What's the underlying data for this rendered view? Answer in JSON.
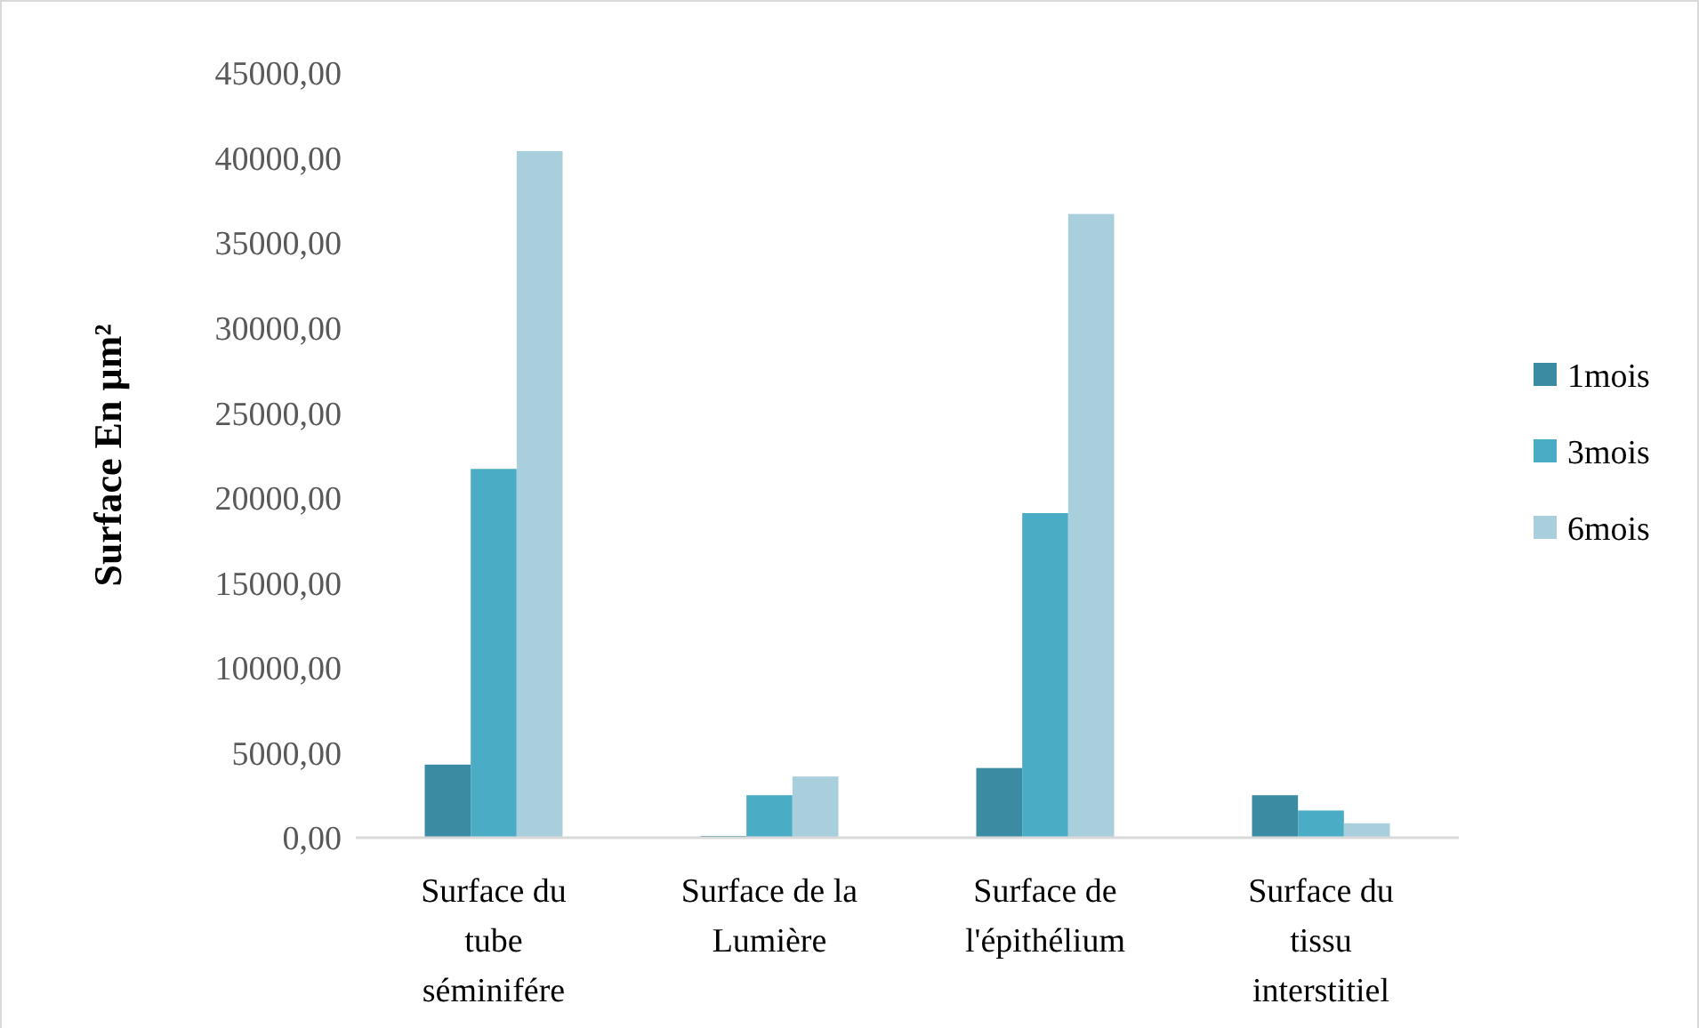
{
  "chart_data": {
    "type": "bar",
    "ylabel": "Surface En µm²",
    "categories": [
      "Surface du tube séminifére",
      "Surface de la Lumière",
      "Surface de l'épithélium",
      "Surface du tissu interstitiel"
    ],
    "series": [
      {
        "name": "1mois",
        "color": "#3b8ba3",
        "values": [
          4300,
          100,
          4100,
          2500
        ]
      },
      {
        "name": "3mois",
        "color": "#4bacc6",
        "values": [
          21700,
          2500,
          19100,
          1600
        ]
      },
      {
        "name": "6mois",
        "color": "#a9cfdd",
        "values": [
          40400,
          3600,
          36700,
          850
        ]
      }
    ],
    "ylim": [
      0,
      45000
    ],
    "yticks": [
      {
        "value": 0,
        "label": "0,00"
      },
      {
        "value": 5000,
        "label": "5000,00"
      },
      {
        "value": 10000,
        "label": "10000,00"
      },
      {
        "value": 15000,
        "label": "15000,00"
      },
      {
        "value": 20000,
        "label": "20000,00"
      },
      {
        "value": 25000,
        "label": "25000,00"
      },
      {
        "value": 30000,
        "label": "30000,00"
      },
      {
        "value": 35000,
        "label": "35000,00"
      },
      {
        "value": 40000,
        "label": "40000,00"
      },
      {
        "value": 45000,
        "label": "45000,00"
      }
    ],
    "grid": false,
    "legend": "right"
  }
}
